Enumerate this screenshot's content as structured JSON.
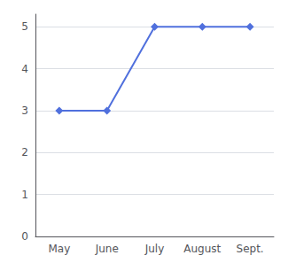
{
  "chart_data": {
    "type": "line",
    "categories": [
      "May",
      "June",
      "July",
      "August",
      "Sept."
    ],
    "values": [
      3,
      3,
      5,
      5,
      5
    ],
    "marker": "diamond",
    "ylim": [
      0,
      5.3
    ],
    "yticks": [
      0,
      1,
      2,
      3,
      4,
      5
    ],
    "grid": true
  }
}
